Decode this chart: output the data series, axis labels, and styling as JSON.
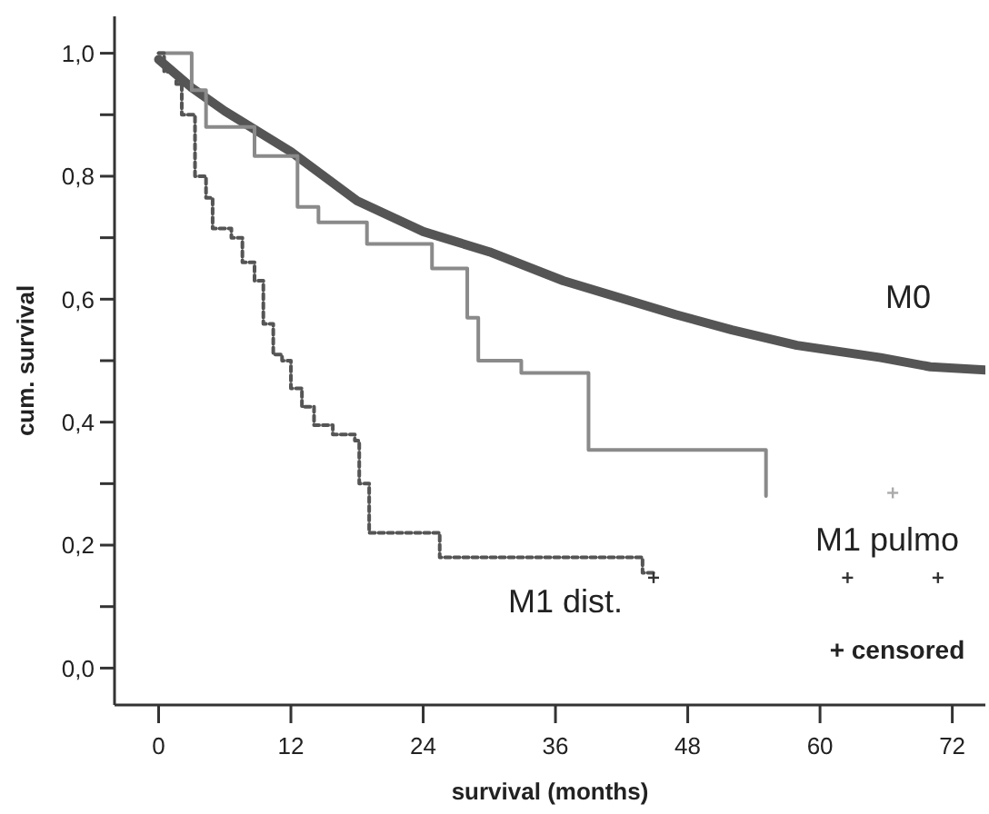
{
  "chart_data": {
    "type": "line",
    "xlabel": "survival (months)",
    "ylabel": "cum. survival",
    "annotations": [
      "+ censored"
    ],
    "xlim": [
      -4,
      75
    ],
    "xticks": [
      0,
      12,
      24,
      36,
      48,
      60,
      72
    ],
    "ylim": [
      -0.06,
      1.06
    ],
    "yticks": [
      {
        "value": 0,
        "label": "0,0"
      },
      {
        "value": 0.1,
        "label": null
      },
      {
        "value": 0.2,
        "label": "0,2"
      },
      {
        "value": 0.3,
        "label": null
      },
      {
        "value": 0.4,
        "label": "0,4"
      },
      {
        "value": 0.5,
        "label": null
      },
      {
        "value": 0.6,
        "label": "0,6"
      },
      {
        "value": 0.7,
        "label": null
      },
      {
        "value": 0.8,
        "label": "0,8"
      },
      {
        "value": 0.9,
        "label": null
      },
      {
        "value": 1,
        "label": "1,0"
      }
    ],
    "grid": false,
    "legend": false,
    "marker": "none",
    "series": [
      {
        "name": "M0",
        "color": "#555555",
        "line_style": "solid",
        "x": [
          0,
          3,
          6,
          12,
          18,
          24,
          30,
          36.7,
          46.9,
          52,
          57.9,
          65.5,
          70,
          75
        ],
        "values": [
          0.99,
          0.944,
          0.906,
          0.84,
          0.76,
          0.71,
          0.677,
          0.63,
          0.575,
          0.55,
          0.525,
          0.505,
          0.49,
          0.485
        ]
      },
      {
        "name": "M1 pulmo",
        "type": "step",
        "color": "#8a8a8a",
        "line_style": "solid",
        "x": [
          0,
          3,
          4.3,
          8.7,
          12.6,
          14.5,
          18.9,
          24.8,
          28,
          29,
          32.9,
          39,
          55.1
        ],
        "values": [
          1,
          0.94,
          0.88,
          0.833,
          0.75,
          0.725,
          0.69,
          0.65,
          0.57,
          0.5,
          0.48,
          0.355,
          0.28
        ]
      },
      {
        "name": "M1 dist.",
        "type": "step",
        "color": "#555555",
        "line_style": "dotted",
        "x": [
          0,
          0.5,
          1.6,
          2.1,
          3.3,
          4.3,
          4.9,
          6.6,
          7.6,
          8.7,
          9.5,
          10.4,
          11.2,
          12,
          13,
          14.1,
          15.8,
          17.8,
          18.2,
          19.1,
          25.5,
          43.9,
          44.9
        ],
        "values": [
          1,
          0.97,
          0.95,
          0.9,
          0.8,
          0.765,
          0.715,
          0.7,
          0.66,
          0.63,
          0.56,
          0.51,
          0.5,
          0.455,
          0.425,
          0.395,
          0.38,
          0.37,
          0.3,
          0.22,
          0.18,
          0.155,
          0.155
        ]
      },
      {
        "type": "scatter",
        "color": "#aaaaaa",
        "marker": "cross",
        "x": [
          66.6
        ],
        "values": [
          0.285
        ]
      },
      {
        "type": "scatter",
        "color": "#333333",
        "marker": "cross",
        "x": [
          44.9,
          62.5,
          70.7
        ],
        "values": [
          0.147,
          0.147,
          0.147
        ]
      }
    ]
  }
}
